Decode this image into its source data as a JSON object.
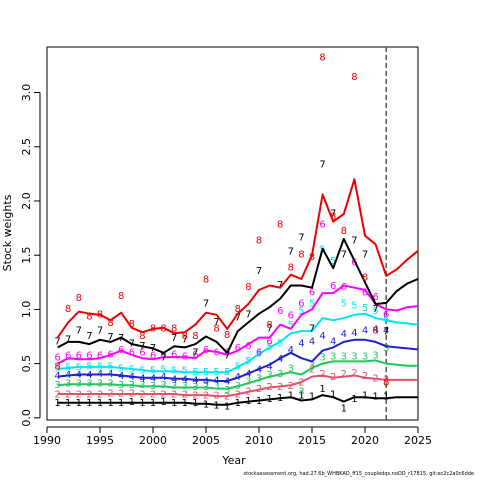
{
  "chart_data": {
    "type": "line",
    "title": "",
    "xlabel": "Year",
    "ylabel": "Stock weights",
    "xlim": [
      1990,
      2025
    ],
    "ylim": [
      -0.02,
      3.42
    ],
    "xticks": [
      1990,
      1995,
      2000,
      2005,
      2010,
      2015,
      2020,
      2025
    ],
    "yticks": [
      0.0,
      0.5,
      1.0,
      1.5,
      2.0,
      2.5,
      3.0
    ],
    "ytick_labels": [
      "0.0",
      "0.5",
      "1.0",
      "1.5",
      "2.0",
      "2.5",
      "3.0"
    ],
    "grid": false,
    "legend": "none",
    "vline": {
      "x": 2022,
      "style": "dashed"
    },
    "footnote": "stockassessment.org, had.27.6b_WHBKAD_ff15_coupledqs.noDD_r17815, git:ec2c2a0c6dde",
    "series": [
      {
        "name": "1",
        "color": "#000000",
        "obs_x": [
          1991,
          1992,
          1993,
          1994,
          1995,
          1996,
          1997,
          1998,
          1999,
          2000,
          2001,
          2002,
          2003,
          2004,
          2005,
          2006,
          2007,
          2008,
          2009,
          2010,
          2011,
          2012,
          2013,
          2014,
          2015,
          2016,
          2017,
          2018,
          2019,
          2020,
          2021,
          2022
        ],
        "obs_y": [
          0.13,
          0.13,
          0.13,
          0.13,
          0.13,
          0.13,
          0.13,
          0.14,
          0.13,
          0.13,
          0.14,
          0.13,
          0.13,
          0.13,
          0.12,
          0.11,
          0.1,
          0.13,
          0.15,
          0.15,
          0.17,
          0.18,
          0.2,
          0.2,
          0.19,
          0.26,
          0.21,
          0.08,
          0.17,
          0.2,
          0.19,
          0.19
        ],
        "fit_x": [
          1991,
          1992,
          1993,
          1994,
          1995,
          1996,
          1997,
          1998,
          1999,
          2000,
          2001,
          2002,
          2003,
          2004,
          2005,
          2006,
          2007,
          2008,
          2009,
          2010,
          2011,
          2012,
          2013,
          2014,
          2015,
          2016,
          2017,
          2018,
          2019,
          2020,
          2021,
          2022,
          2023,
          2024,
          2025
        ],
        "fit_y": [
          0.14,
          0.14,
          0.14,
          0.14,
          0.14,
          0.14,
          0.14,
          0.14,
          0.14,
          0.14,
          0.14,
          0.14,
          0.14,
          0.13,
          0.13,
          0.12,
          0.12,
          0.14,
          0.15,
          0.16,
          0.17,
          0.18,
          0.19,
          0.16,
          0.17,
          0.21,
          0.19,
          0.15,
          0.19,
          0.19,
          0.18,
          0.18,
          0.19,
          0.19,
          0.19
        ]
      },
      {
        "name": "2",
        "color": "#df536b",
        "obs_x": [
          1991,
          1992,
          1993,
          1994,
          1995,
          1996,
          1997,
          1998,
          1999,
          2000,
          2001,
          2002,
          2003,
          2004,
          2005,
          2006,
          2007,
          2008,
          2009,
          2010,
          2011,
          2012,
          2013,
          2014,
          2015,
          2016,
          2017,
          2018,
          2019,
          2020,
          2021,
          2022
        ],
        "obs_y": [
          0.21,
          0.21,
          0.21,
          0.21,
          0.21,
          0.22,
          0.22,
          0.22,
          0.21,
          0.21,
          0.21,
          0.21,
          0.21,
          0.2,
          0.2,
          0.2,
          0.19,
          0.21,
          0.24,
          0.26,
          0.28,
          0.28,
          0.29,
          0.32,
          0.44,
          0.4,
          0.37,
          0.4,
          0.41,
          0.38,
          0.36,
          0.35
        ],
        "fit_x": [
          1991,
          1992,
          1993,
          1994,
          1995,
          1996,
          1997,
          1998,
          1999,
          2000,
          2001,
          2002,
          2003,
          2004,
          2005,
          2006,
          2007,
          2008,
          2009,
          2010,
          2011,
          2012,
          2013,
          2014,
          2015,
          2016,
          2017,
          2018,
          2019,
          2020,
          2021,
          2022,
          2023,
          2024,
          2025
        ],
        "fit_y": [
          0.22,
          0.22,
          0.22,
          0.22,
          0.22,
          0.22,
          0.22,
          0.22,
          0.22,
          0.22,
          0.22,
          0.22,
          0.21,
          0.21,
          0.21,
          0.2,
          0.2,
          0.22,
          0.24,
          0.26,
          0.28,
          0.29,
          0.3,
          0.33,
          0.38,
          0.39,
          0.37,
          0.38,
          0.39,
          0.37,
          0.36,
          0.35,
          0.35,
          0.35,
          0.35
        ]
      },
      {
        "name": "3",
        "color": "#22c55e",
        "obs_x": [
          1991,
          1992,
          1993,
          1994,
          1995,
          1996,
          1997,
          1998,
          1999,
          2000,
          2001,
          2002,
          2003,
          2004,
          2005,
          2006,
          2007,
          2008,
          2009,
          2010,
          2011,
          2012,
          2013,
          2014,
          2015,
          2016,
          2017,
          2018,
          2019,
          2020,
          2021,
          2022
        ],
        "obs_y": [
          0.3,
          0.31,
          0.31,
          0.31,
          0.31,
          0.31,
          0.3,
          0.3,
          0.3,
          0.29,
          0.3,
          0.29,
          0.29,
          0.28,
          0.28,
          0.29,
          0.25,
          0.29,
          0.33,
          0.36,
          0.39,
          0.4,
          0.45,
          0.24,
          0.48,
          0.55,
          0.56,
          0.56,
          0.56,
          0.56,
          0.57,
          0.64
        ],
        "fit_x": [
          1991,
          1992,
          1993,
          1994,
          1995,
          1996,
          1997,
          1998,
          1999,
          2000,
          2001,
          2002,
          2003,
          2004,
          2005,
          2006,
          2007,
          2008,
          2009,
          2010,
          2011,
          2012,
          2013,
          2014,
          2015,
          2016,
          2017,
          2018,
          2019,
          2020,
          2021,
          2022,
          2023,
          2024,
          2025
        ],
        "fit_y": [
          0.3,
          0.31,
          0.31,
          0.31,
          0.31,
          0.31,
          0.3,
          0.3,
          0.29,
          0.29,
          0.29,
          0.28,
          0.28,
          0.28,
          0.28,
          0.27,
          0.27,
          0.29,
          0.32,
          0.35,
          0.38,
          0.4,
          0.42,
          0.4,
          0.46,
          0.5,
          0.52,
          0.52,
          0.52,
          0.52,
          0.53,
          0.5,
          0.49,
          0.48,
          0.48
        ]
      },
      {
        "name": "4",
        "color": "#1f1fd1",
        "obs_x": [
          1991,
          1992,
          1993,
          1994,
          1995,
          1996,
          1997,
          1998,
          1999,
          2000,
          2001,
          2002,
          2003,
          2004,
          2005,
          2006,
          2007,
          2008,
          2009,
          2010,
          2011,
          2012,
          2013,
          2014,
          2015,
          2016,
          2017,
          2018,
          2019,
          2020,
          2021,
          2022
        ],
        "obs_y": [
          0.38,
          0.39,
          0.39,
          0.39,
          0.4,
          0.4,
          0.38,
          0.37,
          0.36,
          0.36,
          0.37,
          0.35,
          0.35,
          0.34,
          0.33,
          0.34,
          0.33,
          0.37,
          0.4,
          0.44,
          0.47,
          0.54,
          0.62,
          0.68,
          0.7,
          0.75,
          0.7,
          0.77,
          0.78,
          0.8,
          0.81,
          0.8
        ],
        "fit_x": [
          1991,
          1992,
          1993,
          1994,
          1995,
          1996,
          1997,
          1998,
          1999,
          2000,
          2001,
          2002,
          2003,
          2004,
          2005,
          2006,
          2007,
          2008,
          2009,
          2010,
          2011,
          2012,
          2013,
          2014,
          2015,
          2016,
          2017,
          2018,
          2019,
          2020,
          2021,
          2022,
          2023,
          2024,
          2025
        ],
        "fit_y": [
          0.38,
          0.39,
          0.4,
          0.4,
          0.4,
          0.4,
          0.39,
          0.38,
          0.37,
          0.37,
          0.37,
          0.36,
          0.36,
          0.35,
          0.35,
          0.34,
          0.34,
          0.37,
          0.41,
          0.45,
          0.49,
          0.55,
          0.6,
          0.55,
          0.52,
          0.62,
          0.65,
          0.7,
          0.72,
          0.72,
          0.7,
          0.66,
          0.65,
          0.64,
          0.63
        ]
      },
      {
        "name": "5",
        "color": "#00e5ee",
        "obs_x": [
          1991,
          1992,
          1993,
          1994,
          1995,
          1996,
          1997,
          1998,
          1999,
          2000,
          2001,
          2002,
          2003,
          2004,
          2005,
          2006,
          2007,
          2008,
          2009,
          2010,
          2011,
          2012,
          2013,
          2014,
          2015,
          2016,
          2017,
          2018,
          2019,
          2020,
          2021,
          2022
        ],
        "obs_y": [
          0.45,
          0.46,
          0.46,
          0.47,
          0.47,
          0.47,
          0.45,
          0.44,
          0.43,
          0.43,
          0.44,
          0.43,
          0.43,
          0.42,
          0.42,
          0.42,
          0.42,
          0.47,
          0.52,
          0.59,
          0.65,
          0.68,
          0.85,
          0.98,
          1.05,
          1.55,
          1.44,
          1.05,
          1.03,
          1.01,
          0.98,
          0.9
        ],
        "fit_x": [
          1991,
          1992,
          1993,
          1994,
          1995,
          1996,
          1997,
          1998,
          1999,
          2000,
          2001,
          2002,
          2003,
          2004,
          2005,
          2006,
          2007,
          2008,
          2009,
          2010,
          2011,
          2012,
          2013,
          2014,
          2015,
          2016,
          2017,
          2018,
          2019,
          2020,
          2021,
          2022,
          2023,
          2024,
          2025
        ],
        "fit_y": [
          0.45,
          0.46,
          0.47,
          0.47,
          0.47,
          0.47,
          0.46,
          0.45,
          0.44,
          0.43,
          0.43,
          0.43,
          0.42,
          0.42,
          0.42,
          0.42,
          0.42,
          0.47,
          0.52,
          0.59,
          0.65,
          0.7,
          0.78,
          0.8,
          0.8,
          0.92,
          0.9,
          0.92,
          0.95,
          0.96,
          0.92,
          0.9,
          0.88,
          0.87,
          0.86
        ]
      },
      {
        "name": "6",
        "color": "#ff00ff",
        "obs_x": [
          1991,
          1992,
          1993,
          1994,
          1995,
          1996,
          1997,
          1998,
          1999,
          2000,
          2001,
          2002,
          2003,
          2004,
          2005,
          2006,
          2007,
          2008,
          2009,
          2010,
          2011,
          2012,
          2013,
          2014,
          2015,
          2016,
          2017,
          2018,
          2019,
          2020,
          2021,
          2022
        ],
        "obs_y": [
          0.55,
          0.57,
          0.57,
          0.57,
          0.57,
          0.58,
          0.62,
          0.6,
          0.6,
          0.57,
          0.57,
          0.58,
          0.56,
          0.58,
          0.62,
          0.6,
          0.6,
          0.64,
          0.66,
          0.6,
          0.7,
          0.98,
          0.94,
          1.05,
          1.15,
          1.78,
          1.21,
          1.2,
          1.43,
          1.15,
          1.11,
          0.95
        ],
        "fit_x": [
          1991,
          1992,
          1993,
          1994,
          1995,
          1996,
          1997,
          1998,
          1999,
          2000,
          2001,
          2002,
          2003,
          2004,
          2005,
          2006,
          2007,
          2008,
          2009,
          2010,
          2011,
          2012,
          2013,
          2014,
          2015,
          2016,
          2017,
          2018,
          2019,
          2020,
          2021,
          2022,
          2023,
          2024,
          2025
        ],
        "fit_y": [
          0.5,
          0.55,
          0.54,
          0.54,
          0.55,
          0.58,
          0.62,
          0.58,
          0.55,
          0.54,
          0.56,
          0.56,
          0.56,
          0.55,
          0.62,
          0.61,
          0.58,
          0.62,
          0.68,
          0.74,
          0.74,
          0.86,
          0.82,
          0.95,
          1.0,
          1.15,
          1.15,
          1.22,
          1.2,
          1.18,
          1.05,
          1.0,
          0.99,
          1.02,
          1.03
        ]
      },
      {
        "name": "7",
        "color": "#000000",
        "obs_x": [
          1991,
          1992,
          1993,
          1994,
          1995,
          1996,
          1997,
          1998,
          1999,
          2000,
          2001,
          2002,
          2003,
          2004,
          2005,
          2006,
          2007,
          2008,
          2009,
          2010,
          2011,
          2012,
          2013,
          2014,
          2015,
          2016,
          2017,
          2018,
          2019,
          2020,
          2021,
          2022
        ],
        "obs_y": [
          0.7,
          0.72,
          0.8,
          0.75,
          0.8,
          0.74,
          0.73,
          0.68,
          0.66,
          0.64,
          0.55,
          0.73,
          0.72,
          0.6,
          1.05,
          0.88,
          0.57,
          0.92,
          0.95,
          1.35,
          0.82,
          1.22,
          1.53,
          1.66,
          0.82,
          2.33,
          1.88,
          1.5,
          1.63,
          1.5,
          1.0,
          0.79
        ],
        "fit_x": [
          1991,
          1992,
          1993,
          1994,
          1995,
          1996,
          1997,
          1998,
          1999,
          2000,
          2001,
          2002,
          2003,
          2004,
          2005,
          2006,
          2007,
          2008,
          2009,
          2010,
          2011,
          2012,
          2013,
          2014,
          2015,
          2016,
          2017,
          2018,
          2019,
          2020,
          2021,
          2022,
          2023,
          2024,
          2025
        ],
        "fit_y": [
          0.65,
          0.7,
          0.7,
          0.68,
          0.72,
          0.7,
          0.74,
          0.68,
          0.66,
          0.64,
          0.6,
          0.66,
          0.65,
          0.68,
          0.75,
          0.7,
          0.6,
          0.8,
          0.88,
          0.96,
          1.02,
          1.1,
          1.22,
          1.22,
          1.2,
          1.56,
          1.38,
          1.65,
          1.45,
          1.25,
          1.05,
          1.06,
          1.17,
          1.24,
          1.28
        ]
      },
      {
        "name": "8",
        "color": "#ee0000",
        "obs_x": [
          1991,
          1992,
          1993,
          1994,
          1995,
          1996,
          1997,
          1998,
          1999,
          2000,
          2001,
          2002,
          2003,
          2004,
          2005,
          2006,
          2007,
          2008,
          2009,
          2010,
          2011,
          2012,
          2013,
          2014,
          2015,
          2016,
          2017,
          2018,
          2019,
          2020,
          2021,
          2022
        ],
        "obs_y": [
          0.47,
          1.0,
          1.1,
          0.93,
          0.95,
          0.87,
          1.12,
          0.86,
          0.75,
          0.82,
          0.82,
          0.82,
          0.75,
          0.75,
          1.27,
          0.82,
          0.76,
          1.0,
          1.2,
          1.63,
          0.85,
          1.78,
          1.38,
          1.5,
          1.48,
          3.32,
          1.85,
          1.72,
          3.14,
          1.29,
          0.8,
          0.32
        ],
        "fit_x": [
          1991,
          1992,
          1993,
          1994,
          1995,
          1996,
          1997,
          1998,
          1999,
          2000,
          2001,
          2002,
          2003,
          2004,
          2005,
          2006,
          2007,
          2008,
          2009,
          2010,
          2011,
          2012,
          2013,
          2014,
          2015,
          2016,
          2017,
          2018,
          2019,
          2020,
          2021,
          2022,
          2023,
          2024,
          2025
        ],
        "fit_y": [
          0.74,
          0.88,
          0.98,
          0.96,
          0.95,
          0.9,
          0.97,
          0.83,
          0.79,
          0.82,
          0.83,
          0.78,
          0.79,
          0.86,
          0.97,
          0.95,
          0.82,
          0.96,
          1.05,
          1.18,
          1.22,
          1.2,
          1.32,
          1.28,
          1.5,
          2.06,
          1.81,
          1.88,
          2.2,
          1.68,
          1.6,
          1.31,
          1.37,
          1.46,
          1.54
        ]
      }
    ]
  }
}
